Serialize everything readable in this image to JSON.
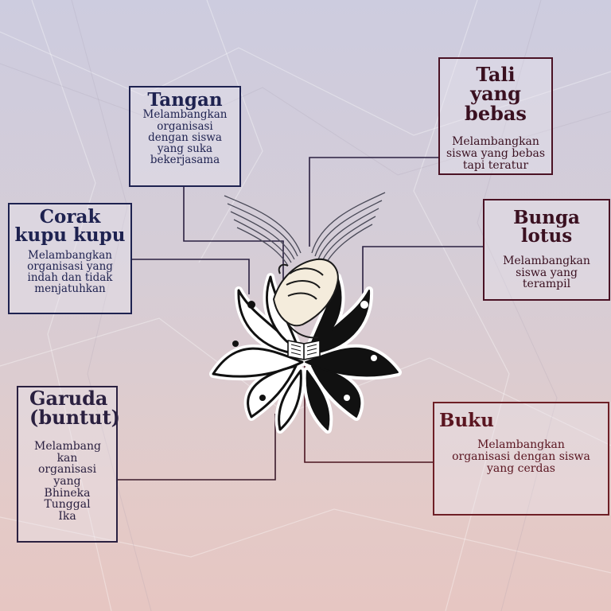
{
  "boxes": {
    "tangan": {
      "title": "Tangan",
      "desc": "Melambangkan organisasi dengan siswa yang suka bekerjasama"
    },
    "tali": {
      "title": "Tali yang bebas",
      "desc": "Melambangkan siswa yang bebas tapi teratur"
    },
    "kupu": {
      "title": "Corak kupu kupu",
      "desc": "Melambangkan organisasi yang indah dan tidak menjatuhkan"
    },
    "lotus": {
      "title": "Bunga lotus",
      "desc": "Melambangkan siswa yang terampil"
    },
    "garuda": {
      "title": "Garuda (buntut)",
      "desc": "Melambang kan organisasi yang Bhineka Tunggal Ika"
    },
    "buku": {
      "title": "Buku",
      "desc": "Melambangkan organisasi dengan siswa yang cerdas"
    }
  },
  "colors": {
    "navy": "#1e2250",
    "dark_red": "#6e1f26",
    "maroon": "#4a1224",
    "background_top": "#cdccdf",
    "background_bottom": "#e6c6c2"
  },
  "logo": {
    "elements": [
      "clasped-hands",
      "flowing-ribbons",
      "lotus-petals",
      "open-book"
    ]
  }
}
